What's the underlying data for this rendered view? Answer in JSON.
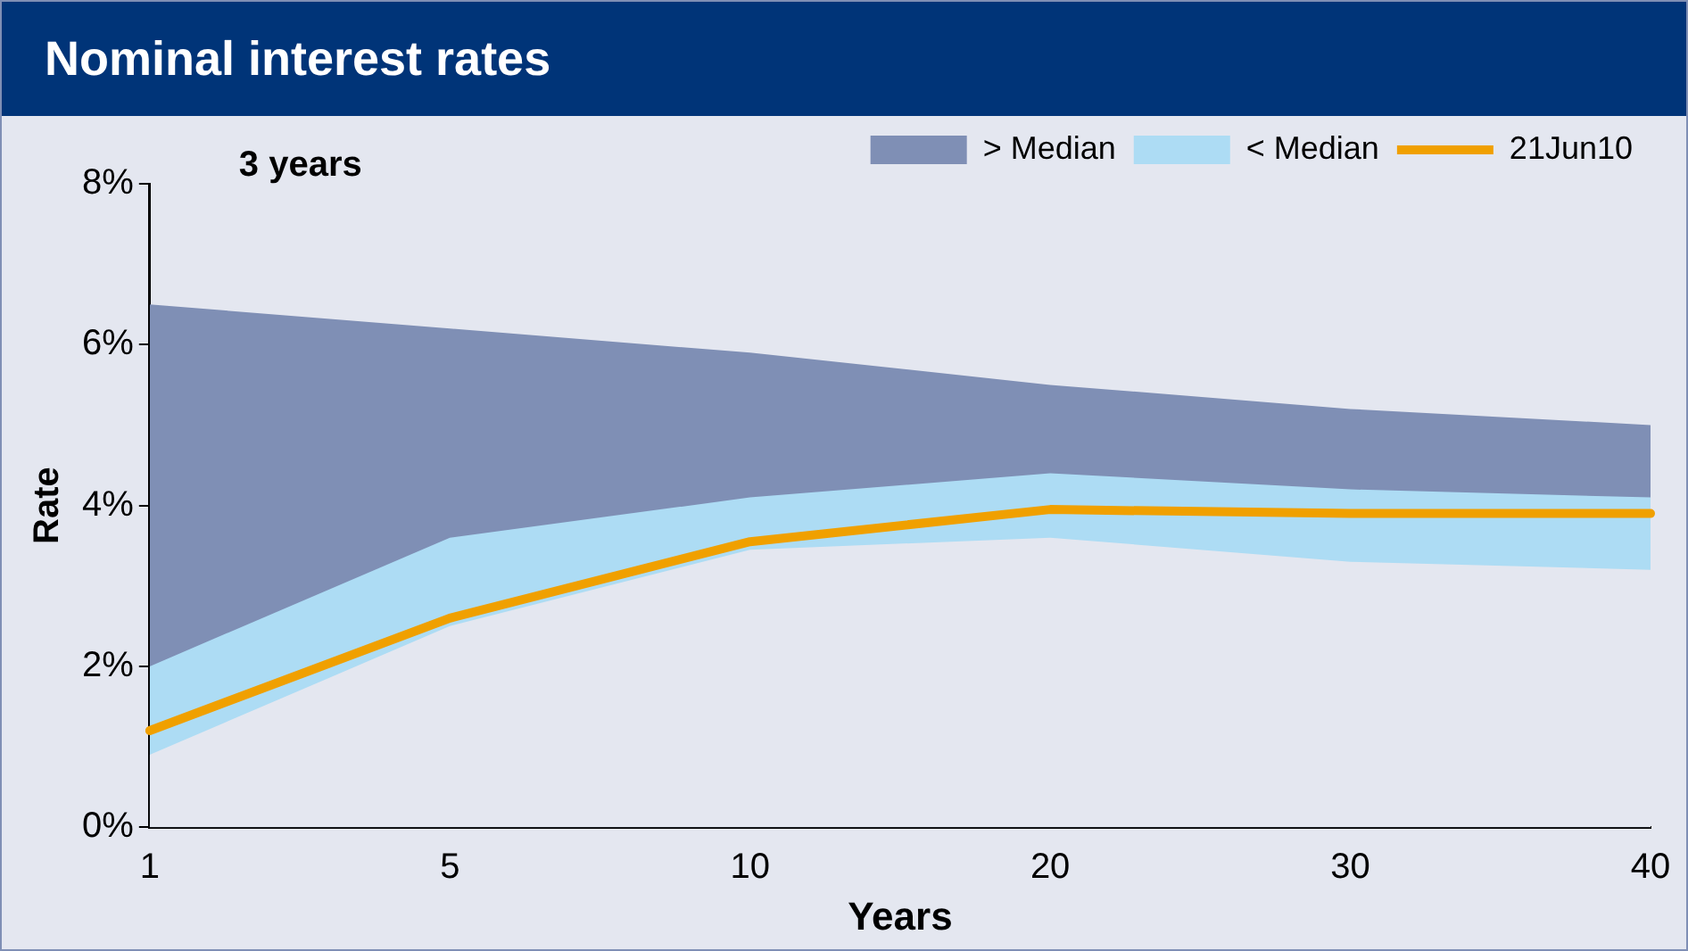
{
  "chart_data": {
    "type": "area",
    "title": "Nominal interest rates",
    "xlabel": "Years",
    "ylabel": "Rate",
    "annotations": [
      "3 years"
    ],
    "categories": [
      "1",
      "5",
      "10",
      "20",
      "30",
      "40"
    ],
    "series": [
      {
        "name": "> Median",
        "type": "area",
        "color": "#7f8fb5",
        "values": [
          6.5,
          6.2,
          5.9,
          5.5,
          5.2,
          5.0
        ]
      },
      {
        "name": "< Median",
        "type": "area",
        "color": "#addcf4",
        "values": [
          2.0,
          3.6,
          4.1,
          4.4,
          4.2,
          4.1
        ]
      },
      {
        "type": "area",
        "color": "#e4e7f0",
        "values": [
          0.9,
          2.5,
          3.45,
          3.6,
          3.3,
          3.2
        ]
      },
      {
        "name": "21Jun10",
        "type": "line",
        "color": "#f0a000",
        "values": [
          1.2,
          2.6,
          3.55,
          3.95,
          3.9,
          3.9
        ]
      }
    ],
    "ylim": [
      0,
      8
    ],
    "yticks": [
      {
        "value": 0,
        "label": "0%"
      },
      {
        "value": 2,
        "label": "2%"
      },
      {
        "value": 4,
        "label": "4%"
      },
      {
        "value": 6,
        "label": "6%"
      },
      {
        "value": 8,
        "label": "8%"
      }
    ],
    "grid": false,
    "legend": "top"
  }
}
